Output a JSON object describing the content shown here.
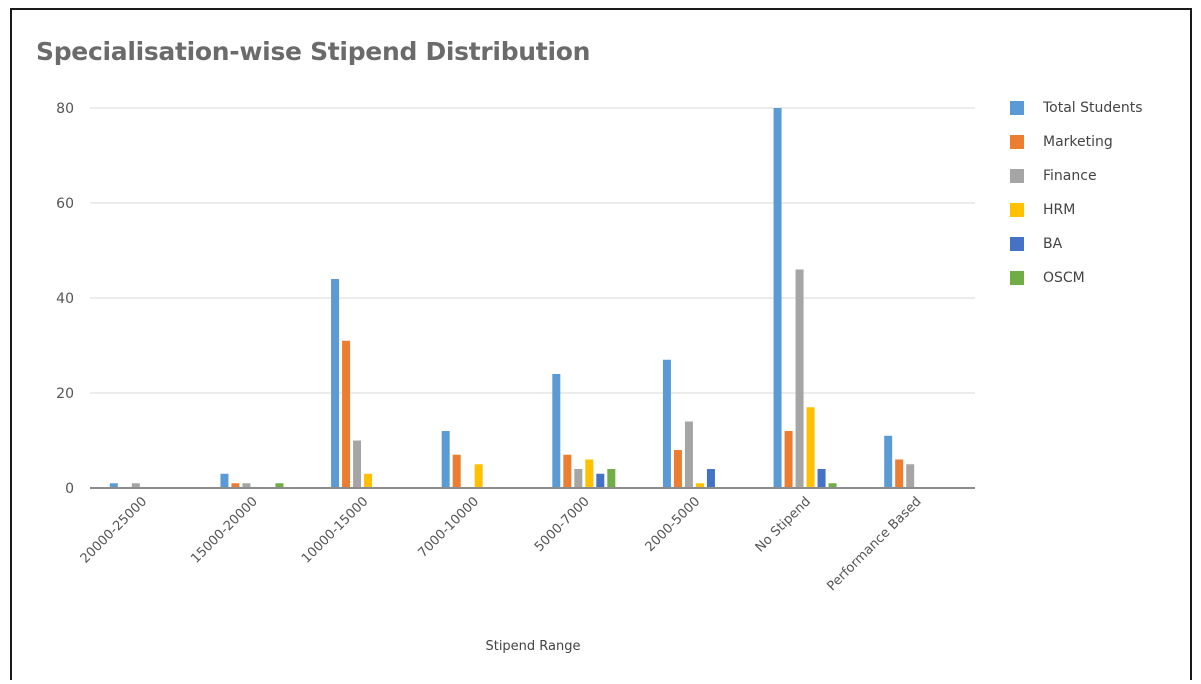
{
  "chart_data": {
    "type": "bar",
    "title": "Specialisation-wise Stipend Distribution",
    "xlabel": "Stipend Range",
    "ylabel": "",
    "ylim": [
      0,
      80
    ],
    "yticks": [
      0,
      20,
      40,
      60,
      80
    ],
    "grid": true,
    "legend": "right",
    "categories": [
      "20000-25000",
      "15000-20000",
      "10000-15000",
      "7000-10000",
      "5000-7000",
      "2000-5000",
      "No Stipend",
      "Performance Based"
    ],
    "series": [
      {
        "name": "Total Students",
        "color": "#5b9bd5",
        "values": [
          1,
          3,
          44,
          12,
          24,
          27,
          80,
          11
        ]
      },
      {
        "name": "Marketing",
        "color": "#ed7d31",
        "values": [
          0,
          1,
          31,
          7,
          7,
          8,
          12,
          6
        ]
      },
      {
        "name": "Finance",
        "color": "#a5a5a5",
        "values": [
          1,
          1,
          10,
          0,
          4,
          14,
          46,
          5
        ]
      },
      {
        "name": "HRM",
        "color": "#ffc000",
        "values": [
          0,
          0,
          3,
          5,
          6,
          1,
          17,
          0
        ]
      },
      {
        "name": "BA",
        "color": "#4472c4",
        "values": [
          0,
          0,
          0,
          0,
          3,
          4,
          4,
          0
        ]
      },
      {
        "name": "OSCM",
        "color": "#70ad47",
        "values": [
          0,
          1,
          0,
          0,
          4,
          0,
          1,
          0
        ]
      }
    ]
  }
}
